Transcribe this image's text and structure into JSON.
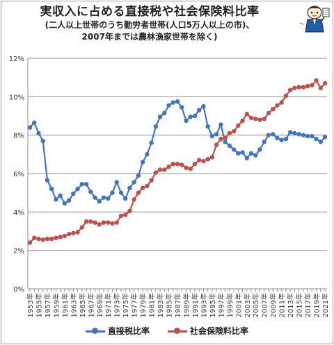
{
  "chart_data": {
    "type": "line",
    "title": "実収入に占める直接税や社会保険料比率",
    "subtitle_lines": [
      "(二人以上世帯のうち勤労者世帯(人口5万人以上の市)、",
      "2007年までは農林漁家世帯を除く)"
    ],
    "xlabel": "",
    "ylabel": "",
    "ylim": [
      0,
      12
    ],
    "yticks": [
      "0%",
      "2%",
      "4%",
      "6%",
      "8%",
      "10%",
      "12%"
    ],
    "grid": true,
    "legend_position": "bottom",
    "x": [
      1953,
      1954,
      1955,
      1956,
      1957,
      1958,
      1959,
      1960,
      1961,
      1962,
      1963,
      1964,
      1965,
      1966,
      1967,
      1968,
      1969,
      1970,
      1971,
      1972,
      1973,
      1974,
      1975,
      1976,
      1977,
      1978,
      1979,
      1980,
      1981,
      1982,
      1983,
      1984,
      1985,
      1986,
      1987,
      1988,
      1989,
      1990,
      1991,
      1992,
      1993,
      1994,
      1995,
      1996,
      1997,
      1998,
      1999,
      2000,
      2001,
      2002,
      2003,
      2004,
      2005,
      2006,
      2007,
      2008,
      2009,
      2010,
      2011,
      2012,
      2013,
      2014,
      2015,
      2016,
      2017,
      2018,
      2019,
      2020,
      2021
    ],
    "x_tick_labels": [
      "1953年",
      "1955年",
      "1957年",
      "1959年",
      "1961年",
      "1963年",
      "1965年",
      "1967年",
      "1969年",
      "1971年",
      "1973年",
      "1975年",
      "1977年",
      "1979年",
      "1981年",
      "1983年",
      "1985年",
      "1987年",
      "1989年",
      "1991年",
      "1993年",
      "1995年",
      "1997年",
      "1999年",
      "2001年",
      "2003年",
      "2005年",
      "2007年",
      "2009年",
      "2011年",
      "2013年",
      "2015年",
      "2017年",
      "2019年",
      "2021年"
    ],
    "series": [
      {
        "name": "直接税比率",
        "color": "#4472c4",
        "values": [
          8.4,
          8.65,
          8.1,
          7.7,
          5.65,
          5.2,
          4.65,
          4.85,
          4.45,
          4.6,
          4.95,
          5.2,
          5.45,
          5.45,
          5.05,
          4.75,
          4.55,
          4.75,
          4.7,
          5.0,
          5.55,
          5.0,
          4.7,
          5.25,
          5.55,
          5.9,
          6.6,
          7.0,
          7.6,
          8.45,
          8.95,
          9.15,
          9.55,
          9.7,
          9.75,
          9.45,
          8.75,
          8.95,
          9.0,
          9.3,
          9.5,
          8.45,
          7.95,
          8.05,
          8.55,
          7.65,
          7.45,
          7.25,
          7.05,
          7.1,
          6.8,
          7.05,
          6.95,
          7.25,
          7.65,
          8.0,
          8.05,
          7.85,
          7.75,
          7.8,
          8.15,
          8.1,
          8.05,
          8.0,
          7.95,
          7.95,
          7.8,
          7.65,
          7.9
        ]
      },
      {
        "name": "社会保険料比率",
        "color": "#c0504d",
        "values": [
          2.4,
          2.65,
          2.6,
          2.55,
          2.6,
          2.6,
          2.65,
          2.7,
          2.75,
          2.85,
          2.9,
          2.95,
          3.2,
          3.5,
          3.5,
          3.45,
          3.35,
          3.45,
          3.45,
          3.4,
          3.45,
          3.8,
          3.85,
          4.05,
          4.65,
          5.0,
          5.25,
          5.35,
          5.65,
          6.05,
          6.2,
          6.2,
          6.35,
          6.5,
          6.5,
          6.45,
          6.3,
          6.25,
          6.5,
          6.7,
          6.65,
          6.75,
          6.85,
          7.5,
          7.8,
          7.85,
          8.1,
          8.2,
          8.5,
          8.75,
          9.1,
          8.9,
          8.85,
          8.8,
          8.85,
          9.15,
          9.35,
          9.55,
          9.7,
          10.05,
          10.35,
          10.45,
          10.5,
          10.5,
          10.55,
          10.6,
          10.85,
          10.45,
          10.7
        ]
      }
    ]
  }
}
